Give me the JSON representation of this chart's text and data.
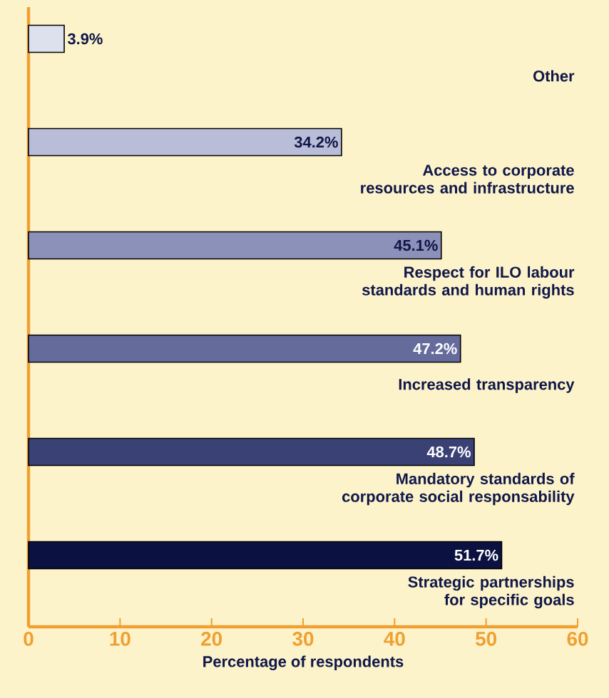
{
  "chart_data": {
    "type": "bar",
    "orientation": "horizontal",
    "xlabel": "Percentage of respondents",
    "categories": [
      "Other",
      "Access to corporate resources and infrastructure",
      "Respect for ILO labour standards and human rights",
      "Increased transparency",
      "Mandatory standards of corporate social responsability",
      "Strategic partnerships for specific goals"
    ],
    "values": [
      3.9,
      34.2,
      45.1,
      47.2,
      48.7,
      51.7
    ],
    "value_labels": [
      "3.9%",
      "34.2%",
      "45.1%",
      "47.2%",
      "48.7%",
      "51.7%"
    ],
    "colors": [
      "#dde1ee",
      "#b9bdd8",
      "#8c91b9",
      "#656c9c",
      "#3a4174",
      "#0b1140"
    ],
    "xlim": [
      0,
      60
    ],
    "xticks": [
      0,
      10,
      20,
      30,
      40,
      50,
      60
    ],
    "grid": false
  }
}
